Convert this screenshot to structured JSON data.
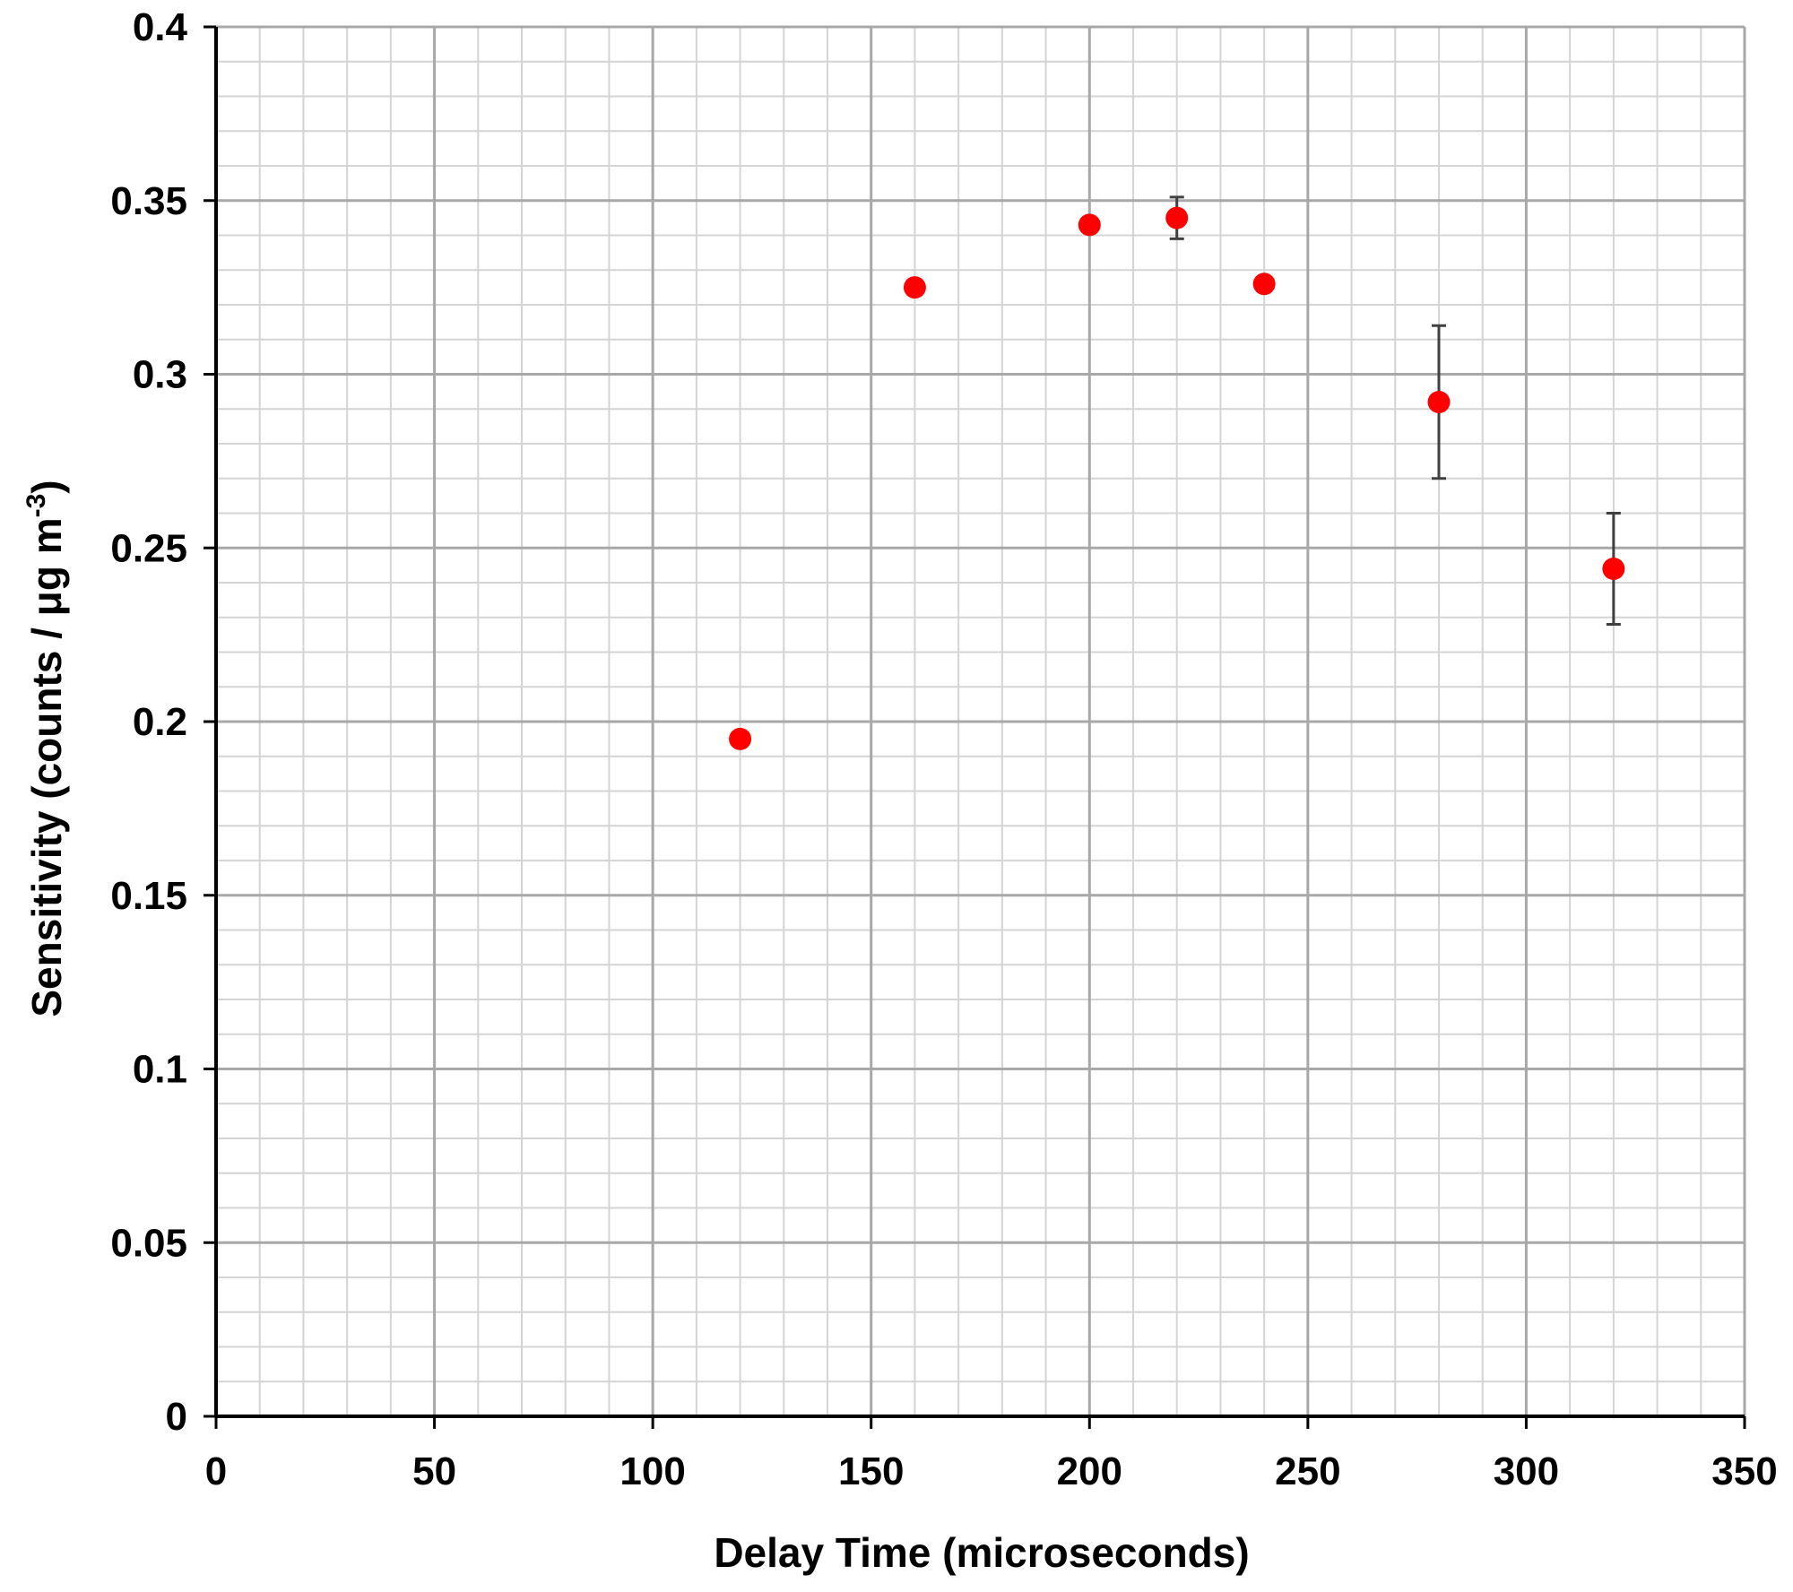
{
  "chart_data": {
    "type": "scatter",
    "title": "",
    "xlabel": "Delay Time (microseconds)",
    "ylabel_main": "Sensitivity (counts / μg m",
    "ylabel_sup": "-3",
    "ylabel_close": ")",
    "xlim": [
      0,
      350
    ],
    "ylim": [
      0,
      0.4
    ],
    "x_ticks": [
      {
        "value": 0,
        "label": "0"
      },
      {
        "value": 50,
        "label": "50"
      },
      {
        "value": 100,
        "label": "100"
      },
      {
        "value": 150,
        "label": "150"
      },
      {
        "value": 200,
        "label": "200"
      },
      {
        "value": 250,
        "label": "250"
      },
      {
        "value": 300,
        "label": "300"
      },
      {
        "value": 350,
        "label": "350"
      }
    ],
    "y_ticks": [
      {
        "value": 0,
        "label": "0"
      },
      {
        "value": 0.05,
        "label": "0.05"
      },
      {
        "value": 0.1,
        "label": "0.1"
      },
      {
        "value": 0.15,
        "label": "0.15"
      },
      {
        "value": 0.2,
        "label": "0.2"
      },
      {
        "value": 0.25,
        "label": "0.25"
      },
      {
        "value": 0.3,
        "label": "0.3"
      },
      {
        "value": 0.35,
        "label": "0.35"
      },
      {
        "value": 0.4,
        "label": "0.4"
      }
    ],
    "x_minor_step": 10,
    "y_minor_step": 0.01,
    "grid": true,
    "legend": "none",
    "series": [
      {
        "color": "#ff0000",
        "points": [
          {
            "x": 120,
            "y": 0.195,
            "err": 0
          },
          {
            "x": 160,
            "y": 0.325,
            "err": 0
          },
          {
            "x": 200,
            "y": 0.343,
            "err": 0
          },
          {
            "x": 220,
            "y": 0.345,
            "err": 0.006
          },
          {
            "x": 240,
            "y": 0.326,
            "err": 0
          },
          {
            "x": 280,
            "y": 0.292,
            "err": 0.022
          },
          {
            "x": 320,
            "y": 0.244,
            "err": 0.016
          }
        ]
      }
    ],
    "colors": {
      "major_grid": "#a8a8a8",
      "minor_grid": "#d4d4d4",
      "axis": "#000000",
      "error_bar": "#404040"
    }
  }
}
